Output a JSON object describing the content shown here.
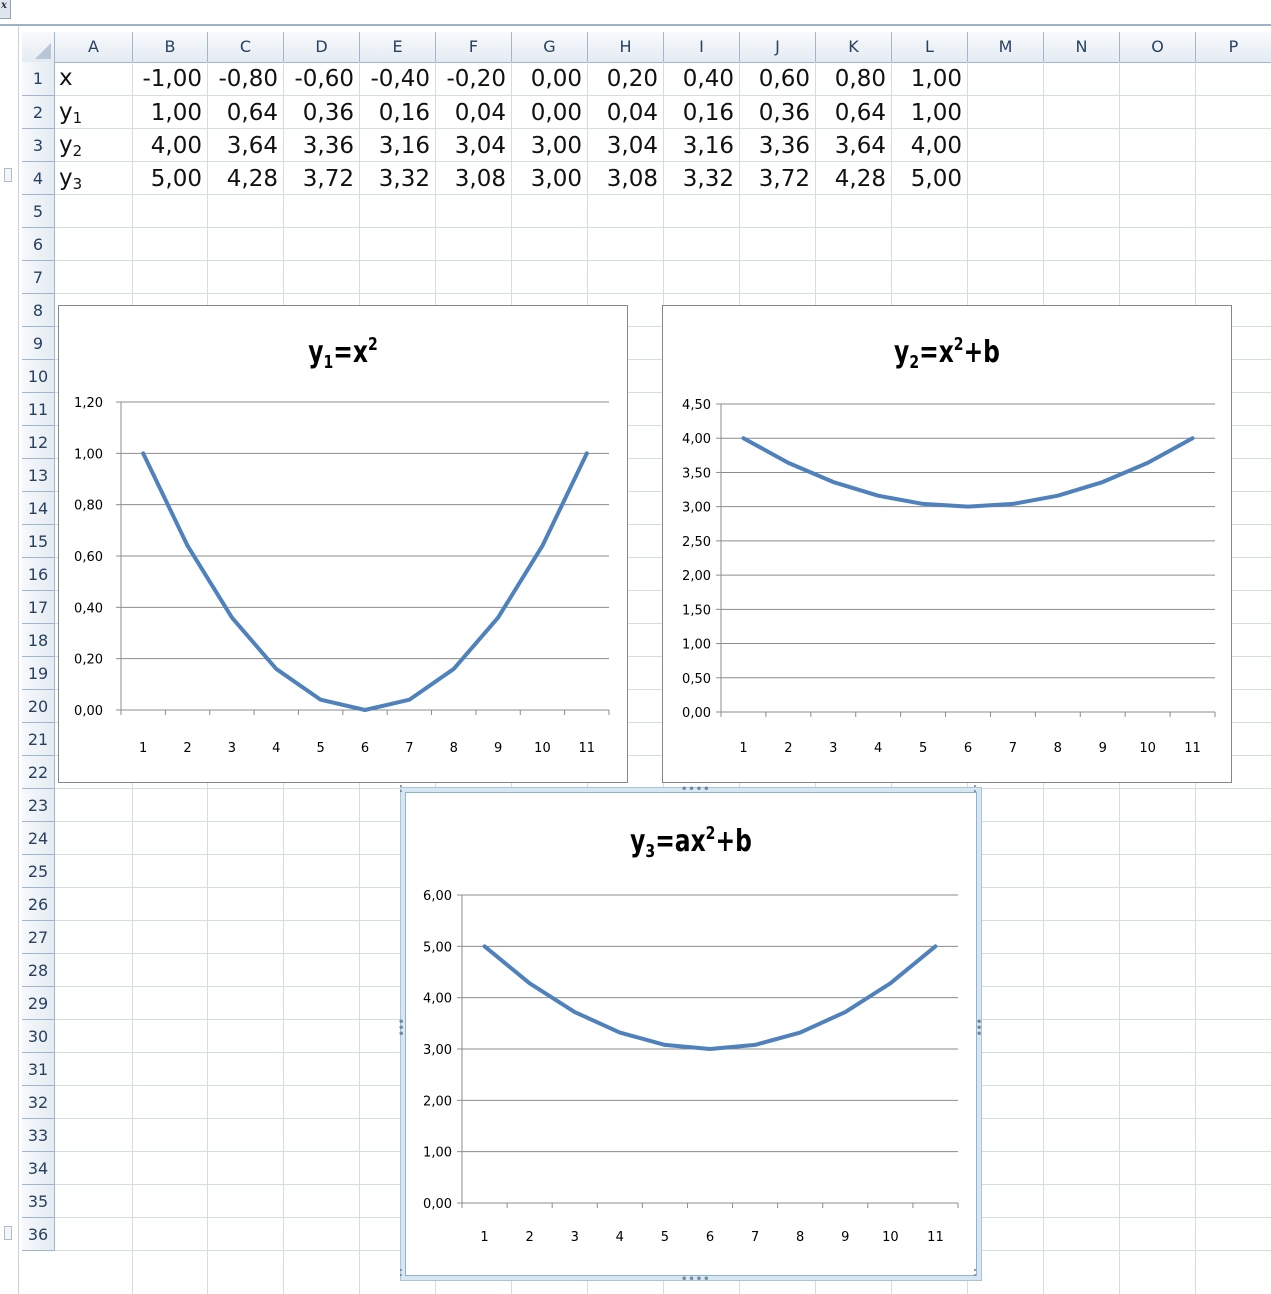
{
  "app": {
    "formula_icon": "fx-icon"
  },
  "columns": [
    "A",
    "B",
    "C",
    "D",
    "E",
    "F",
    "G",
    "H",
    "I",
    "J",
    "K",
    "L",
    "M",
    "N",
    "O",
    "P"
  ],
  "rows": [
    "1",
    "2",
    "3",
    "4",
    "5",
    "6",
    "7",
    "8",
    "9",
    "10",
    "11",
    "12",
    "13",
    "14",
    "15",
    "16",
    "17",
    "18",
    "19",
    "20",
    "21",
    "22",
    "23",
    "24",
    "25",
    "26",
    "27",
    "28",
    "29",
    "30",
    "31",
    "32",
    "33",
    "34",
    "35",
    "36"
  ],
  "sheet": {
    "row_labels": [
      {
        "base": "x",
        "sub": ""
      },
      {
        "base": "y",
        "sub": "1"
      },
      {
        "base": "y",
        "sub": "2"
      },
      {
        "base": "y",
        "sub": "3"
      }
    ],
    "values": [
      [
        "-1,00",
        "-0,80",
        "-0,60",
        "-0,40",
        "-0,20",
        "0,00",
        "0,20",
        "0,40",
        "0,60",
        "0,80",
        "1,00"
      ],
      [
        "1,00",
        "0,64",
        "0,36",
        "0,16",
        "0,04",
        "0,00",
        "0,04",
        "0,16",
        "0,36",
        "0,64",
        "1,00"
      ],
      [
        "4,00",
        "3,64",
        "3,36",
        "3,16",
        "3,04",
        "3,00",
        "3,04",
        "3,16",
        "3,36",
        "3,64",
        "4,00"
      ],
      [
        "5,00",
        "4,28",
        "3,72",
        "3,32",
        "3,08",
        "3,00",
        "3,08",
        "3,32",
        "3,72",
        "4,28",
        "5,00"
      ]
    ]
  },
  "chart_data": [
    {
      "type": "line",
      "title": {
        "base": "y",
        "sub": "1",
        "rest1": "=x",
        "sup": "2",
        "rest2": ""
      },
      "categories": [
        "1",
        "2",
        "3",
        "4",
        "5",
        "6",
        "7",
        "8",
        "9",
        "10",
        "11"
      ],
      "series": [
        {
          "values": [
            1.0,
            0.64,
            0.36,
            0.16,
            0.04,
            0.0,
            0.04,
            0.16,
            0.36,
            0.64,
            1.0
          ]
        }
      ],
      "ylim": [
        0,
        1.2
      ],
      "yticks": [
        "0,00",
        "0,20",
        "0,40",
        "0,60",
        "0,80",
        "1,00",
        "1,20"
      ],
      "grid": true,
      "color": "#4f81bd"
    },
    {
      "type": "line",
      "title": {
        "base": "y",
        "sub": "2",
        "rest1": "=x",
        "sup": "2",
        "rest2": "+b"
      },
      "categories": [
        "1",
        "2",
        "3",
        "4",
        "5",
        "6",
        "7",
        "8",
        "9",
        "10",
        "11"
      ],
      "series": [
        {
          "values": [
            4.0,
            3.64,
            3.36,
            3.16,
            3.04,
            3.0,
            3.04,
            3.16,
            3.36,
            3.64,
            4.0
          ]
        }
      ],
      "ylim": [
        0,
        4.5
      ],
      "yticks": [
        "0,00",
        "0,50",
        "1,00",
        "1,50",
        "2,00",
        "2,50",
        "3,00",
        "3,50",
        "4,00",
        "4,50"
      ],
      "grid": true,
      "color": "#4f81bd"
    },
    {
      "type": "line",
      "title": {
        "base": "y",
        "sub": "3",
        "rest1": "=ax",
        "sup": "2",
        "rest2": "+b"
      },
      "categories": [
        "1",
        "2",
        "3",
        "4",
        "5",
        "6",
        "7",
        "8",
        "9",
        "10",
        "11"
      ],
      "series": [
        {
          "values": [
            5.0,
            4.28,
            3.72,
            3.32,
            3.08,
            3.0,
            3.08,
            3.32,
            3.72,
            4.28,
            5.0
          ]
        }
      ],
      "ylim": [
        0,
        6
      ],
      "yticks": [
        "0,00",
        "1,00",
        "2,00",
        "3,00",
        "4,00",
        "5,00",
        "6,00"
      ],
      "grid": true,
      "color": "#4f81bd"
    }
  ]
}
